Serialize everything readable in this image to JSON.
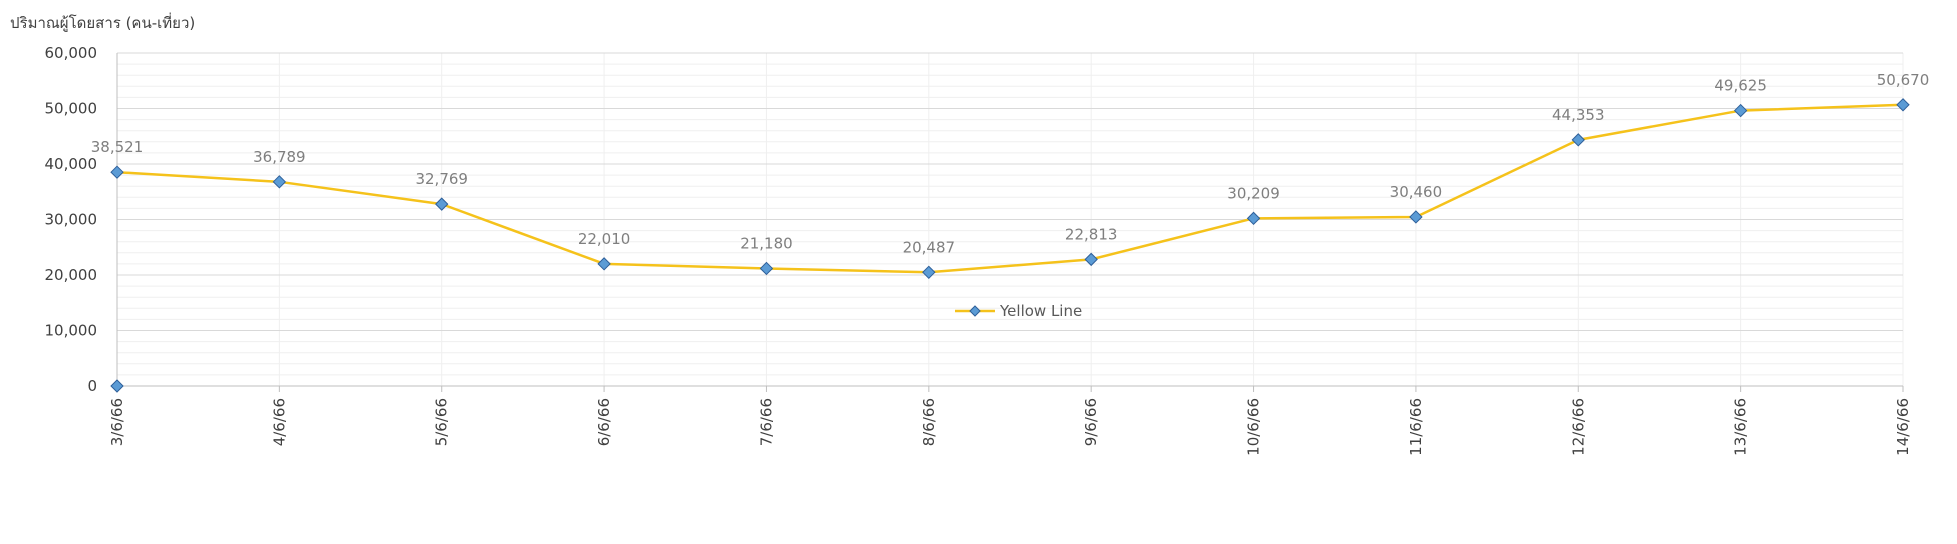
{
  "chart_data": {
    "type": "line",
    "ylabel": "ปริมาณผู้โดยสาร (คน-เที่ยว)",
    "categories": [
      "3/6/66",
      "4/6/66",
      "5/6/66",
      "6/6/66",
      "7/6/66",
      "8/6/66",
      "9/6/66",
      "10/6/66",
      "11/6/66",
      "12/6/66",
      "13/6/66",
      "14/6/66"
    ],
    "series": [
      {
        "name": "Yellow Line",
        "values": [
          38521,
          36789,
          32769,
          22010,
          21180,
          20487,
          22813,
          30209,
          30460,
          44353,
          49625,
          50670
        ],
        "data_labels": [
          "38,521",
          "36,789",
          "32,769",
          "22,010",
          "21,180",
          "20,487",
          "22,813",
          "30,209",
          "30,460",
          "44,353",
          "49,625",
          "50,670"
        ]
      }
    ],
    "ylim": [
      0,
      60000
    ],
    "y_ticks": [
      0,
      10000,
      20000,
      30000,
      40000,
      50000,
      60000
    ],
    "y_tick_labels": [
      "0",
      "10,000",
      "20,000",
      "30,000",
      "40,000",
      "50,000",
      "60,000"
    ],
    "grid": true,
    "legend_position": "inside-center",
    "colors": {
      "line": "#f5c21b",
      "marker_fill": "#5b9bd5",
      "marker_stroke": "#2e5f99",
      "grid_major": "#d9d9d9",
      "grid_minor": "#efefef",
      "axis": "#bfbfbf"
    }
  }
}
